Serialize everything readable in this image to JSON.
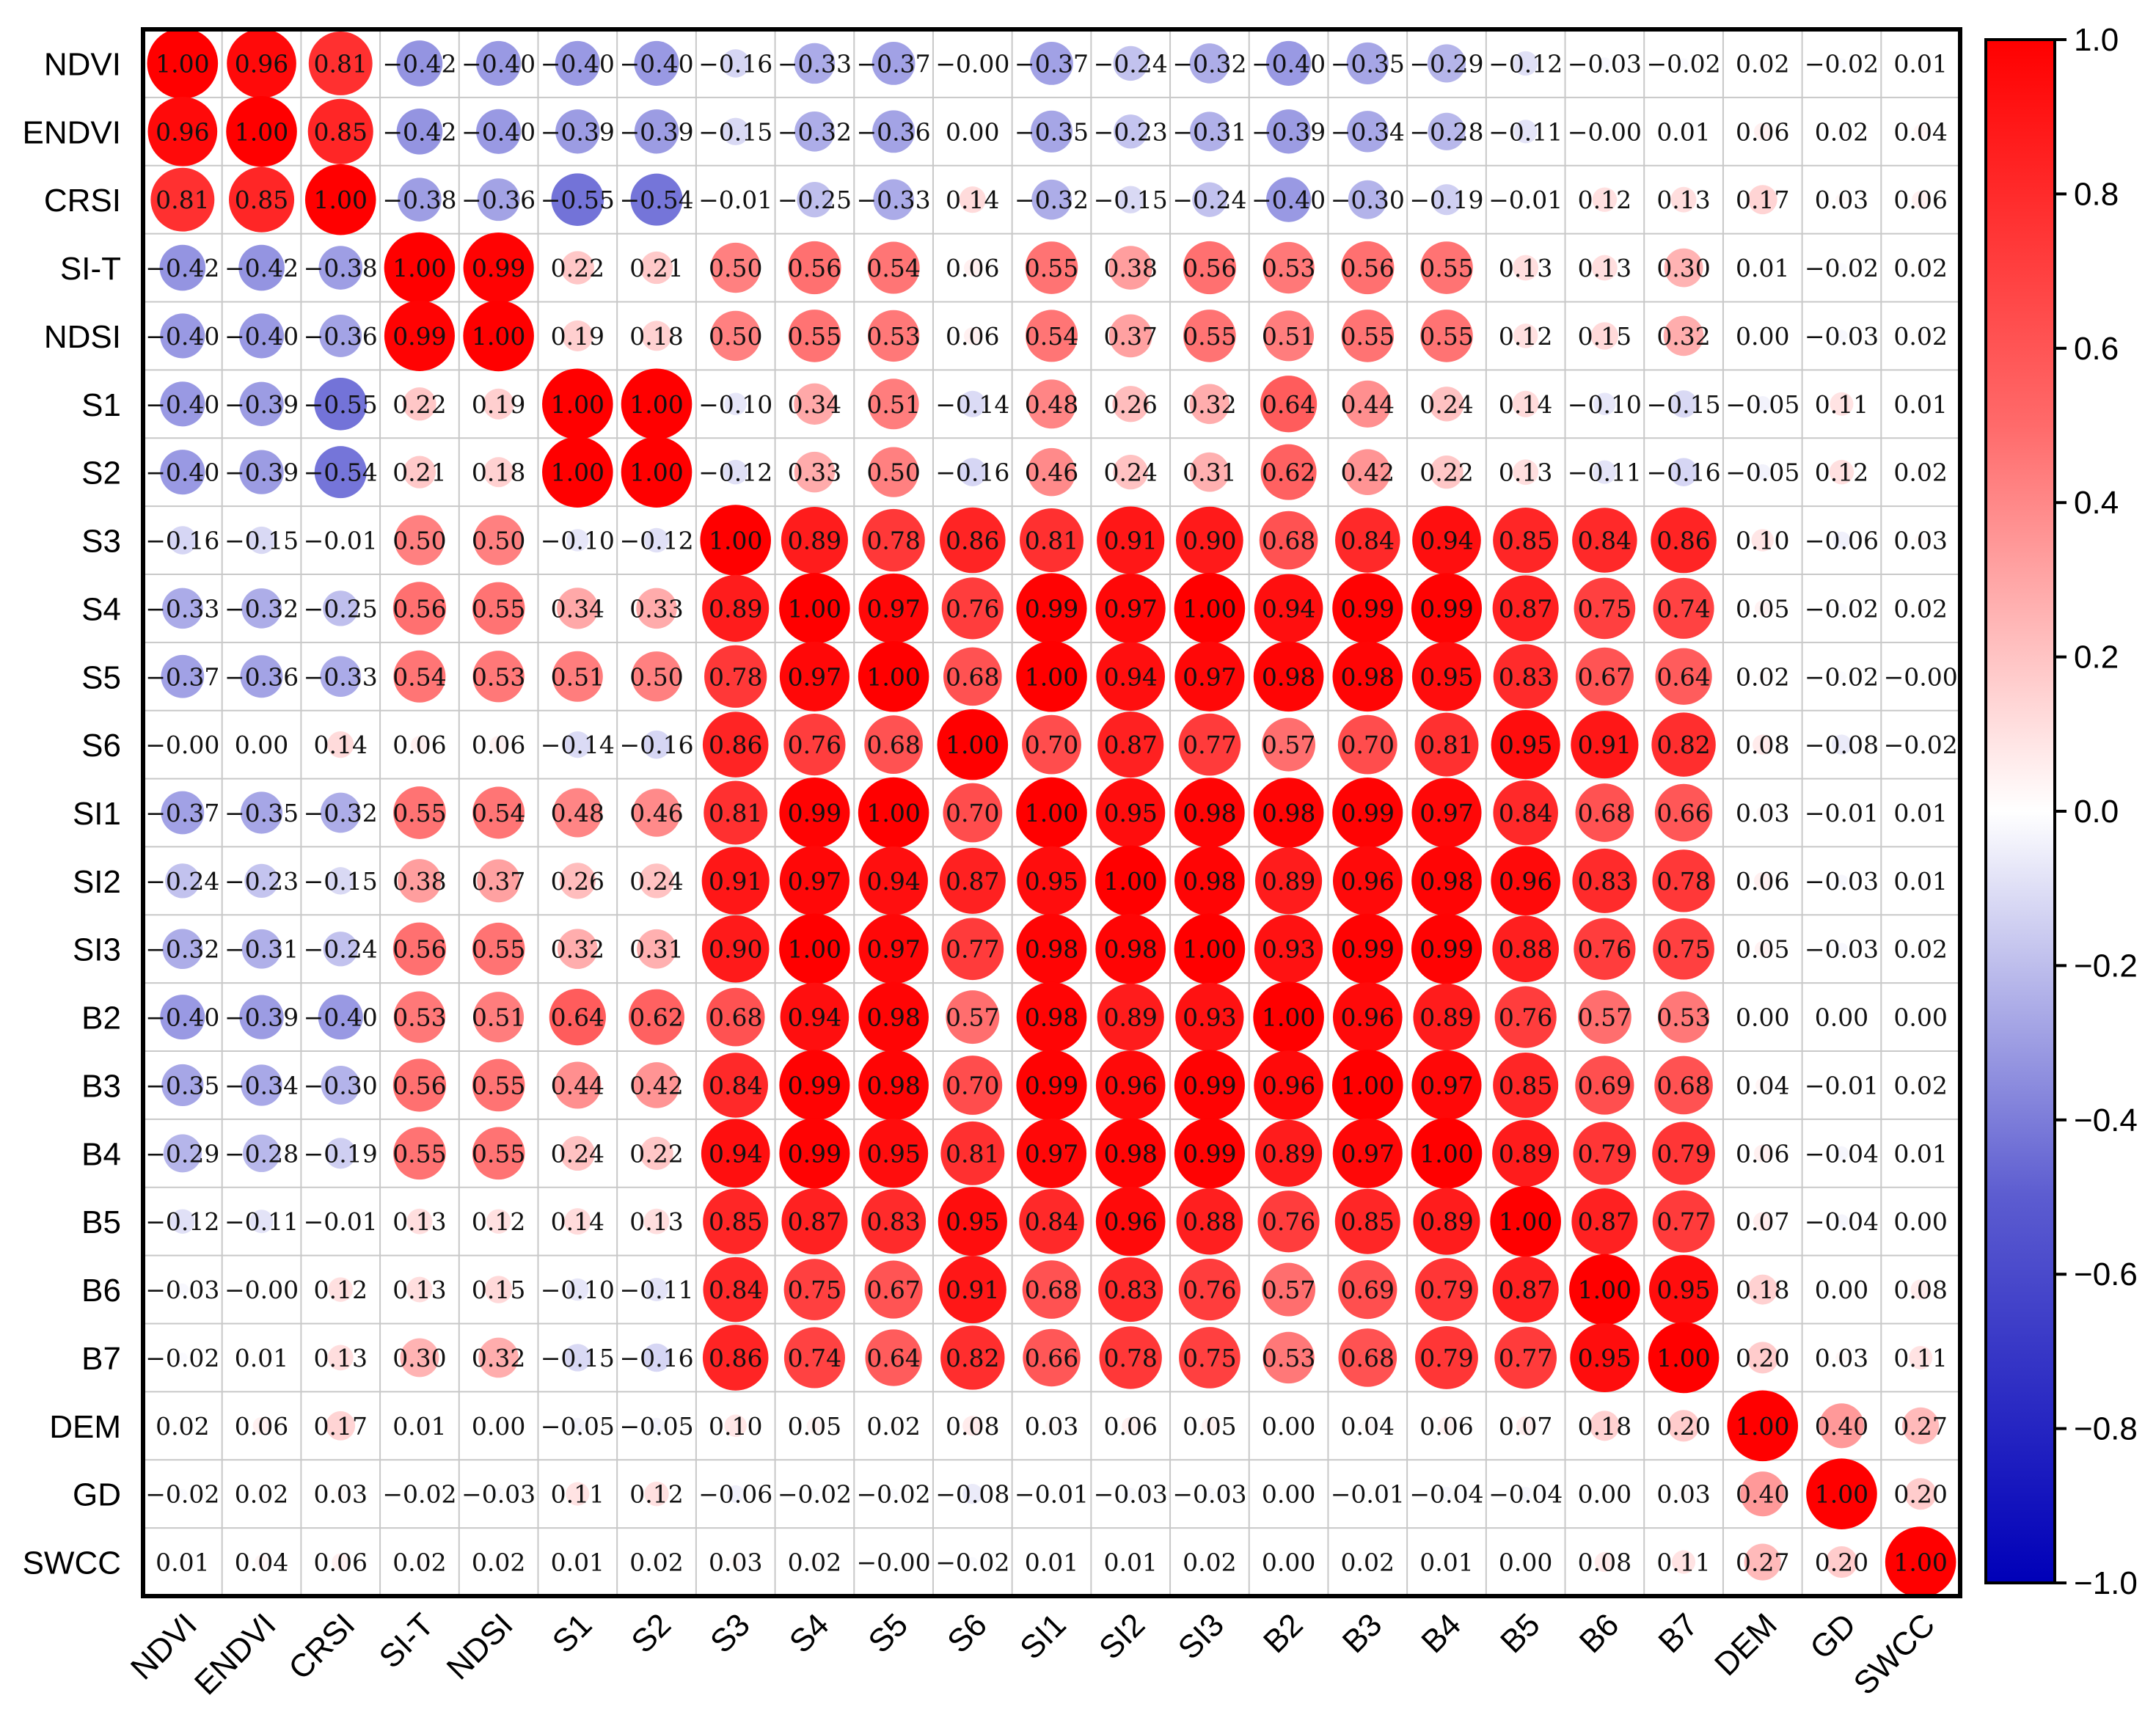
{
  "chart_data": {
    "type": "heatmap",
    "title": "",
    "variables": [
      "NDVI",
      "ENDVI",
      "CRSI",
      "SI-T",
      "NDSI",
      "S1",
      "S2",
      "S3",
      "S4",
      "S5",
      "S6",
      "SI1",
      "SI2",
      "SI3",
      "B2",
      "B3",
      "B4",
      "B5",
      "B6",
      "B7",
      "DEM",
      "GD",
      "SWCC"
    ],
    "matrix": [
      [
        1.0,
        0.96,
        0.81,
        -0.42,
        -0.4,
        -0.4,
        -0.4,
        -0.16,
        -0.33,
        -0.37,
        -0.0,
        -0.37,
        -0.24,
        -0.32,
        -0.4,
        -0.35,
        -0.29,
        -0.12,
        -0.03,
        -0.02,
        0.02,
        -0.02,
        0.01
      ],
      [
        0.96,
        1.0,
        0.85,
        -0.42,
        -0.4,
        -0.39,
        -0.39,
        -0.15,
        -0.32,
        -0.36,
        0.0,
        -0.35,
        -0.23,
        -0.31,
        -0.39,
        -0.34,
        -0.28,
        -0.11,
        -0.0,
        0.01,
        0.06,
        0.02,
        0.04
      ],
      [
        0.81,
        0.85,
        1.0,
        -0.38,
        -0.36,
        -0.55,
        -0.54,
        -0.01,
        -0.25,
        -0.33,
        0.14,
        -0.32,
        -0.15,
        -0.24,
        -0.4,
        -0.3,
        -0.19,
        -0.01,
        0.12,
        0.13,
        0.17,
        0.03,
        0.06
      ],
      [
        -0.42,
        -0.42,
        -0.38,
        1.0,
        0.99,
        0.22,
        0.21,
        0.5,
        0.56,
        0.54,
        0.06,
        0.55,
        0.38,
        0.56,
        0.53,
        0.56,
        0.55,
        0.13,
        0.13,
        0.3,
        0.01,
        -0.02,
        0.02
      ],
      [
        -0.4,
        -0.4,
        -0.36,
        0.99,
        1.0,
        0.19,
        0.18,
        0.5,
        0.55,
        0.53,
        0.06,
        0.54,
        0.37,
        0.55,
        0.51,
        0.55,
        0.55,
        0.12,
        0.15,
        0.32,
        0.0,
        -0.03,
        0.02
      ],
      [
        -0.4,
        -0.39,
        -0.55,
        0.22,
        0.19,
        1.0,
        1.0,
        -0.1,
        0.34,
        0.51,
        -0.14,
        0.48,
        0.26,
        0.32,
        0.64,
        0.44,
        0.24,
        0.14,
        -0.1,
        -0.15,
        -0.05,
        0.11,
        0.01
      ],
      [
        -0.4,
        -0.39,
        -0.54,
        0.21,
        0.18,
        1.0,
        1.0,
        -0.12,
        0.33,
        0.5,
        -0.16,
        0.46,
        0.24,
        0.31,
        0.62,
        0.42,
        0.22,
        0.13,
        -0.11,
        -0.16,
        -0.05,
        0.12,
        0.02
      ],
      [
        -0.16,
        -0.15,
        -0.01,
        0.5,
        0.5,
        -0.1,
        -0.12,
        1.0,
        0.89,
        0.78,
        0.86,
        0.81,
        0.91,
        0.9,
        0.68,
        0.84,
        0.94,
        0.85,
        0.84,
        0.86,
        0.1,
        -0.06,
        0.03
      ],
      [
        -0.33,
        -0.32,
        -0.25,
        0.56,
        0.55,
        0.34,
        0.33,
        0.89,
        1.0,
        0.97,
        0.76,
        0.99,
        0.97,
        1.0,
        0.94,
        0.99,
        0.99,
        0.87,
        0.75,
        0.74,
        0.05,
        -0.02,
        0.02
      ],
      [
        -0.37,
        -0.36,
        -0.33,
        0.54,
        0.53,
        0.51,
        0.5,
        0.78,
        0.97,
        1.0,
        0.68,
        1.0,
        0.94,
        0.97,
        0.98,
        0.98,
        0.95,
        0.83,
        0.67,
        0.64,
        0.02,
        -0.02,
        -0.0
      ],
      [
        -0.0,
        0.0,
        0.14,
        0.06,
        0.06,
        -0.14,
        -0.16,
        0.86,
        0.76,
        0.68,
        1.0,
        0.7,
        0.87,
        0.77,
        0.57,
        0.7,
        0.81,
        0.95,
        0.91,
        0.82,
        0.08,
        -0.08,
        -0.02
      ],
      [
        -0.37,
        -0.35,
        -0.32,
        0.55,
        0.54,
        0.48,
        0.46,
        0.81,
        0.99,
        1.0,
        0.7,
        1.0,
        0.95,
        0.98,
        0.98,
        0.99,
        0.97,
        0.84,
        0.68,
        0.66,
        0.03,
        -0.01,
        0.01
      ],
      [
        -0.24,
        -0.23,
        -0.15,
        0.38,
        0.37,
        0.26,
        0.24,
        0.91,
        0.97,
        0.94,
        0.87,
        0.95,
        1.0,
        0.98,
        0.89,
        0.96,
        0.98,
        0.96,
        0.83,
        0.78,
        0.06,
        -0.03,
        0.01
      ],
      [
        -0.32,
        -0.31,
        -0.24,
        0.56,
        0.55,
        0.32,
        0.31,
        0.9,
        1.0,
        0.97,
        0.77,
        0.98,
        0.98,
        1.0,
        0.93,
        0.99,
        0.99,
        0.88,
        0.76,
        0.75,
        0.05,
        -0.03,
        0.02
      ],
      [
        -0.4,
        -0.39,
        -0.4,
        0.53,
        0.51,
        0.64,
        0.62,
        0.68,
        0.94,
        0.98,
        0.57,
        0.98,
        0.89,
        0.93,
        1.0,
        0.96,
        0.89,
        0.76,
        0.57,
        0.53,
        0.0,
        0.0,
        0.0
      ],
      [
        -0.35,
        -0.34,
        -0.3,
        0.56,
        0.55,
        0.44,
        0.42,
        0.84,
        0.99,
        0.98,
        0.7,
        0.99,
        0.96,
        0.99,
        0.96,
        1.0,
        0.97,
        0.85,
        0.69,
        0.68,
        0.04,
        -0.01,
        0.02
      ],
      [
        -0.29,
        -0.28,
        -0.19,
        0.55,
        0.55,
        0.24,
        0.22,
        0.94,
        0.99,
        0.95,
        0.81,
        0.97,
        0.98,
        0.99,
        0.89,
        0.97,
        1.0,
        0.89,
        0.79,
        0.79,
        0.06,
        -0.04,
        0.01
      ],
      [
        -0.12,
        -0.11,
        -0.01,
        0.13,
        0.12,
        0.14,
        0.13,
        0.85,
        0.87,
        0.83,
        0.95,
        0.84,
        0.96,
        0.88,
        0.76,
        0.85,
        0.89,
        1.0,
        0.87,
        0.77,
        0.07,
        -0.04,
        0.0
      ],
      [
        -0.03,
        -0.0,
        0.12,
        0.13,
        0.15,
        -0.1,
        -0.11,
        0.84,
        0.75,
        0.67,
        0.91,
        0.68,
        0.83,
        0.76,
        0.57,
        0.69,
        0.79,
        0.87,
        1.0,
        0.95,
        0.18,
        0.0,
        0.08
      ],
      [
        -0.02,
        0.01,
        0.13,
        0.3,
        0.32,
        -0.15,
        -0.16,
        0.86,
        0.74,
        0.64,
        0.82,
        0.66,
        0.78,
        0.75,
        0.53,
        0.68,
        0.79,
        0.77,
        0.95,
        1.0,
        0.2,
        0.03,
        0.11
      ],
      [
        0.02,
        0.06,
        0.17,
        0.01,
        0.0,
        -0.05,
        -0.05,
        0.1,
        0.05,
        0.02,
        0.08,
        0.03,
        0.06,
        0.05,
        0.0,
        0.04,
        0.06,
        0.07,
        0.18,
        0.2,
        1.0,
        0.4,
        0.27
      ],
      [
        -0.02,
        0.02,
        0.03,
        -0.02,
        -0.03,
        0.11,
        0.12,
        -0.06,
        -0.02,
        -0.02,
        -0.08,
        -0.01,
        -0.03,
        -0.03,
        0.0,
        -0.01,
        -0.04,
        -0.04,
        0.0,
        0.03,
        0.4,
        1.0,
        0.2
      ],
      [
        0.01,
        0.04,
        0.06,
        0.02,
        0.02,
        0.01,
        0.02,
        0.03,
        0.02,
        -0.0,
        -0.02,
        0.01,
        0.01,
        0.02,
        0.0,
        0.02,
        0.01,
        0.0,
        0.08,
        0.11,
        0.27,
        0.2,
        1.0
      ]
    ],
    "colorbar": {
      "range": [
        -1.0,
        1.0
      ],
      "ticks": [
        1.0,
        0.8,
        0.6,
        0.4,
        0.2,
        0.0,
        -0.2,
        -0.4,
        -0.6,
        -0.8,
        -1.0
      ],
      "tick_labels": [
        "1.0",
        "0.8",
        "0.6",
        "0.4",
        "0.2",
        "0.0",
        "−0.2",
        "−0.4",
        "−0.6",
        "−0.8",
        "−1.0"
      ],
      "colormap": "bwr",
      "colors": {
        "negative": "#0000b8",
        "neutral": "#ffffff",
        "positive": "#ff0000"
      }
    },
    "marker": "circle",
    "marker_size_encodes": "abs(value)",
    "value_format": "2 decimals, unicode minus for negatives",
    "grid_color": "#c8c8c8",
    "frame_color": "#000000"
  }
}
